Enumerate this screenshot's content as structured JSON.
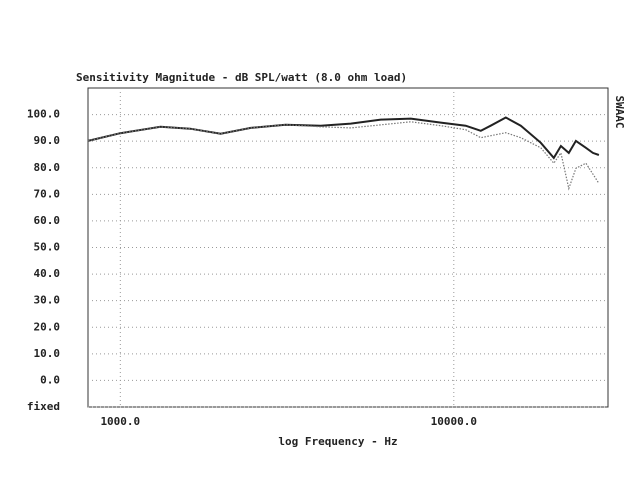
{
  "chart_data": {
    "type": "line",
    "title": "Sensitivity Magnitude - dB SPL/watt (8.0 ohm load)",
    "x_label": "log Frequency - Hz",
    "annotation": "SWAAC",
    "x_scale": "log",
    "xlim": [
      800,
      29000
    ],
    "xticks": [
      {
        "value": 1000,
        "label": "1000.0"
      },
      {
        "value": 10000,
        "label": "10000.0"
      }
    ],
    "ylim": [
      -10,
      110
    ],
    "yticks": [
      {
        "value": -10,
        "label": "fixed"
      },
      {
        "value": 0,
        "label": "0.0"
      },
      {
        "value": 10,
        "label": "10.0"
      },
      {
        "value": 20,
        "label": "20.0"
      },
      {
        "value": 30,
        "label": "30.0"
      },
      {
        "value": 40,
        "label": "40.0"
      },
      {
        "value": 50,
        "label": "50.0"
      },
      {
        "value": 60,
        "label": "60.0"
      },
      {
        "value": 70,
        "label": "70.0"
      },
      {
        "value": 80,
        "label": "80.0"
      },
      {
        "value": 90,
        "label": "90.0"
      },
      {
        "value": 100,
        "label": "100.0"
      }
    ],
    "grid": true,
    "series": [
      {
        "color": "#222222",
        "style": "solid",
        "x": [
          800,
          1000,
          1320,
          1620,
          2000,
          2460,
          3130,
          3990,
          4910,
          6040,
          7430,
          9140,
          10860,
          12050,
          12900,
          14320,
          15880,
          18230,
          19950,
          20950,
          22130,
          23230,
          24890,
          26120,
          27240
        ],
        "values": [
          90.1,
          93,
          95.4,
          94.7,
          92.8,
          95,
          96.2,
          95.8,
          96.6,
          98.1,
          98.5,
          97,
          95.8,
          93.9,
          95.8,
          98.9,
          95.8,
          89.4,
          83.7,
          88.2,
          85.6,
          90.1,
          87.5,
          85.6,
          84.8
        ]
      },
      {
        "color": "#777777",
        "style": "dotted",
        "x": [
          800,
          1000,
          1320,
          1620,
          2000,
          2460,
          3130,
          3990,
          4910,
          7430,
          9140,
          10860,
          12050,
          14320,
          15880,
          18230,
          19950,
          20950,
          22130,
          23230,
          24890,
          27240
        ],
        "values": [
          90.1,
          93,
          95.4,
          94.7,
          92.8,
          95,
          96.2,
          95.4,
          95,
          97.3,
          95.8,
          94.3,
          91.3,
          93.2,
          91.3,
          87.5,
          81.7,
          85.6,
          72.2,
          79.8,
          81.7,
          74.1
        ]
      }
    ]
  }
}
